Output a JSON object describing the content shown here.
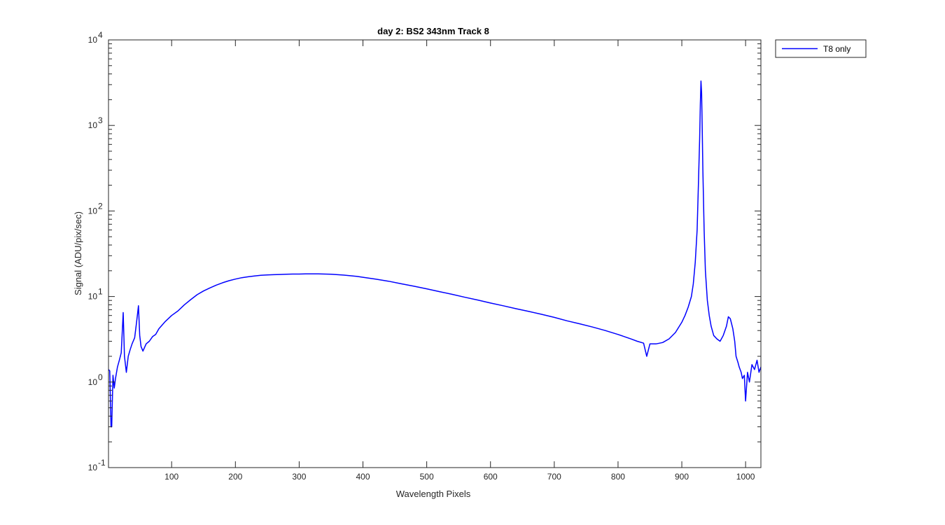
{
  "chart_data": {
    "type": "line",
    "title": "day 2: BS2  343nm  Track 8",
    "xlabel": "Wavelength Pixels",
    "ylabel": "Signal (ADU/pix/sec)",
    "xlim": [
      1,
      1024
    ],
    "ylim": [
      0.1,
      10000
    ],
    "yscale": "log",
    "xticks": [
      100,
      200,
      300,
      400,
      500,
      600,
      700,
      800,
      900,
      1000
    ],
    "yticks": [
      {
        "value": 0.1,
        "base": "10",
        "exp": "-1"
      },
      {
        "value": 1,
        "base": "10",
        "exp": "0"
      },
      {
        "value": 10,
        "base": "10",
        "exp": "1"
      },
      {
        "value": 100,
        "base": "10",
        "exp": "2"
      },
      {
        "value": 1000,
        "base": "10",
        "exp": "3"
      },
      {
        "value": 10000,
        "base": "10",
        "exp": "4"
      }
    ],
    "grid": false,
    "legend_position": "outside-top-right",
    "series": [
      {
        "name": "T8 only",
        "color": "#0000ff",
        "x": [
          1,
          3,
          5,
          6,
          8,
          10,
          12,
          15,
          18,
          21,
          24,
          26,
          29,
          32,
          35,
          38,
          42,
          45,
          48,
          50,
          52,
          55,
          60,
          65,
          70,
          75,
          80,
          90,
          100,
          110,
          120,
          130,
          140,
          150,
          160,
          170,
          180,
          190,
          200,
          210,
          220,
          230,
          240,
          250,
          260,
          270,
          280,
          290,
          300,
          310,
          320,
          330,
          340,
          350,
          360,
          370,
          380,
          390,
          400,
          420,
          440,
          460,
          480,
          500,
          520,
          540,
          560,
          580,
          600,
          620,
          640,
          660,
          680,
          700,
          720,
          740,
          760,
          780,
          800,
          810,
          820,
          830,
          840,
          845,
          850,
          860,
          870,
          880,
          890,
          900,
          905,
          910,
          915,
          918,
          921,
          924,
          926,
          928,
          929,
          930,
          931,
          932,
          933,
          935,
          937,
          940,
          943,
          946,
          950,
          955,
          960,
          965,
          970,
          973,
          976,
          980,
          983,
          985,
          988,
          990,
          993,
          995,
          998,
          1000,
          1003,
          1006,
          1010,
          1014,
          1018,
          1021,
          1024
        ],
        "y": [
          1.4,
          1.35,
          0.3,
          0.3,
          1.2,
          0.85,
          1.1,
          1.5,
          1.8,
          2.2,
          6.5,
          2.0,
          1.3,
          2.0,
          2.4,
          2.8,
          3.3,
          5.0,
          7.8,
          3.5,
          2.6,
          2.3,
          2.8,
          3.0,
          3.4,
          3.6,
          4.2,
          5.1,
          6.0,
          6.8,
          8.0,
          9.2,
          10.5,
          11.6,
          12.6,
          13.6,
          14.5,
          15.3,
          16.0,
          16.6,
          17.0,
          17.4,
          17.7,
          17.9,
          18.0,
          18.1,
          18.2,
          18.3,
          18.3,
          18.4,
          18.4,
          18.4,
          18.3,
          18.2,
          18.0,
          17.8,
          17.5,
          17.2,
          16.8,
          16.0,
          15.1,
          14.1,
          13.2,
          12.3,
          11.4,
          10.6,
          9.8,
          9.1,
          8.4,
          7.8,
          7.2,
          6.7,
          6.2,
          5.7,
          5.2,
          4.8,
          4.4,
          4.0,
          3.6,
          3.4,
          3.2,
          3.0,
          2.85,
          2.0,
          2.8,
          2.8,
          2.9,
          3.2,
          3.8,
          5.0,
          6.0,
          7.5,
          10.0,
          14.0,
          25.0,
          60.0,
          200.0,
          700.0,
          1800.0,
          3300.0,
          2400.0,
          900.0,
          300.0,
          60.0,
          20.0,
          9.0,
          6.0,
          4.5,
          3.5,
          3.2,
          3.0,
          3.5,
          4.5,
          5.8,
          5.5,
          4.2,
          3.0,
          2.0,
          1.7,
          1.5,
          1.3,
          1.1,
          1.2,
          0.6,
          1.3,
          1.0,
          1.6,
          1.4,
          1.8,
          1.3,
          1.5
        ]
      }
    ]
  }
}
